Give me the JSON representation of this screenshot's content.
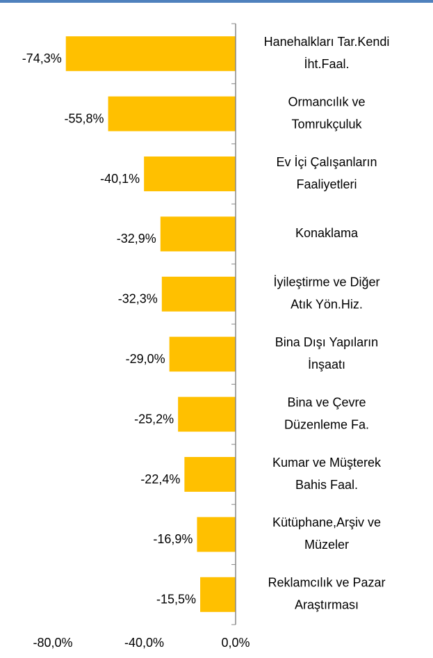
{
  "chart_data": {
    "type": "barh",
    "categories": [
      [
        "Hanehalkları Tar.Kendi",
        "İht.Faal."
      ],
      [
        "Ormancılık ve",
        "Tomrukçuluk"
      ],
      [
        "Ev İçi Çalışanların",
        "Faaliyetleri"
      ],
      [
        "Konaklama"
      ],
      [
        "İyileştirme ve Diğer",
        "Atık Yön.Hiz."
      ],
      [
        "Bina Dışı Yapıların",
        "İnşaatı"
      ],
      [
        "Bina ve Çevre",
        "Düzenleme Fa."
      ],
      [
        "Kumar ve Müşterek",
        "Bahis Faal."
      ],
      [
        "Kütüphane,Arşiv ve",
        "Müzeler"
      ],
      [
        "Reklamcılık ve Pazar",
        "Araştırması"
      ]
    ],
    "values": [
      -74.3,
      -55.8,
      -40.1,
      -32.9,
      -32.3,
      -29.0,
      -25.2,
      -22.4,
      -16.9,
      -15.5
    ],
    "value_labels": [
      "-74,3%",
      "-55,8%",
      "-40,1%",
      "-32,9%",
      "-32,3%",
      "-29,0%",
      "-25,2%",
      "-22,4%",
      "-16,9%",
      "-15,5%"
    ],
    "color": "#ffc000",
    "xlim": [
      -80,
      0
    ],
    "xticks": [
      {
        "value": -80,
        "label": "-80,0%"
      },
      {
        "value": -40,
        "label": "-40,0%"
      },
      {
        "value": 0,
        "label": "0,0%"
      }
    ]
  }
}
